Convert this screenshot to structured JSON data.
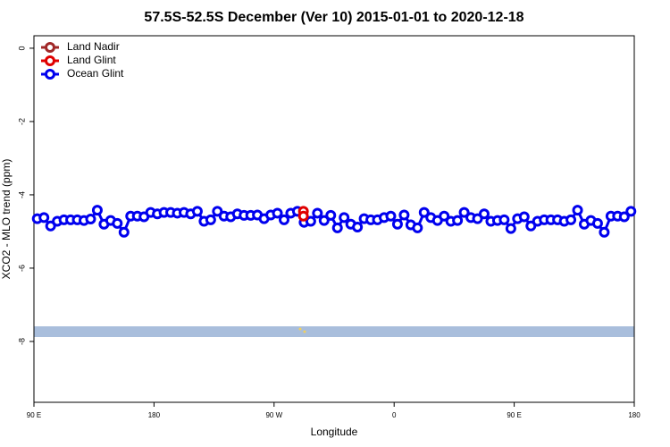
{
  "chart_data": {
    "type": "line",
    "title": "57.5S-52.5S December (Ver 10)   2015-01-01 to 2020-12-18",
    "x_label": "Longitude",
    "y_label": "XCO2 - MLO trend (ppm)",
    "xlim": [
      90,
      540
    ],
    "xticks": [
      {
        "value": 90,
        "label": "90 E"
      },
      {
        "value": 180,
        "label": "180"
      },
      {
        "value": 270,
        "label": "90 W"
      },
      {
        "value": 360,
        "label": "0"
      },
      {
        "value": 450,
        "label": "90 E"
      },
      {
        "value": 540,
        "label": "180"
      }
    ],
    "ylim": [
      -9.66,
      0.34
    ],
    "yticks": [
      0,
      -2,
      -4,
      -6,
      -8
    ],
    "legend": "upper left",
    "series": [
      {
        "name": "Land Nadir",
        "color": "#a02828",
        "x": [],
        "values": []
      },
      {
        "name": "Land Glint",
        "color": "#e00000",
        "x": [
          292,
          292
        ],
        "values": [
          -4.45,
          -4.58
        ]
      },
      {
        "name": "Ocean Glint",
        "color": "#0000ee",
        "x": [
          92.5,
          97.5,
          102.5,
          107.5,
          112.5,
          117.5,
          122.5,
          127.5,
          132.5,
          137.5,
          142.5,
          147.5,
          152.5,
          157.5,
          162.5,
          167.5,
          172.5,
          177.5,
          182.5,
          187.5,
          192.5,
          197.5,
          202.5,
          207.5,
          212.5,
          217.5,
          222.5,
          227.5,
          232.5,
          237.5,
          242.5,
          247.5,
          252.5,
          257.5,
          262.5,
          267.5,
          272.5,
          277.5,
          282.5,
          287.5,
          292.5,
          297.5,
          302.5,
          307.5,
          312.5,
          317.5,
          322.5,
          327.5,
          332.5,
          337.5,
          342.5,
          347.5,
          352.5,
          357.5,
          362.5,
          367.5,
          372.5,
          377.5,
          382.5,
          387.5,
          392.5,
          397.5,
          402.5,
          407.5,
          412.5,
          417.5,
          422.5,
          427.5,
          432.5,
          437.5,
          442.5,
          447.5,
          452.5,
          457.5,
          462.5,
          467.5,
          472.5,
          477.5,
          482.5,
          487.5,
          492.5,
          497.5,
          502.5,
          507.5,
          512.5,
          517.5,
          522.5,
          527.5,
          532.5,
          537.5
        ],
        "values": [
          -4.65,
          -4.62,
          -4.85,
          -4.72,
          -4.68,
          -4.68,
          -4.68,
          -4.7,
          -4.66,
          -4.42,
          -4.8,
          -4.7,
          -4.78,
          -5.02,
          -4.58,
          -4.58,
          -4.6,
          -4.48,
          -4.52,
          -4.48,
          -4.48,
          -4.5,
          -4.48,
          -4.52,
          -4.45,
          -4.72,
          -4.68,
          -4.45,
          -4.58,
          -4.6,
          -4.52,
          -4.56,
          -4.56,
          -4.55,
          -4.65,
          -4.55,
          -4.5,
          -4.68,
          -4.5,
          -4.45,
          -4.75,
          -4.72,
          -4.5,
          -4.7,
          -4.56,
          -4.9,
          -4.62,
          -4.8,
          -4.88,
          -4.65,
          -4.68,
          -4.68,
          -4.62,
          -4.58,
          -4.8,
          -4.55,
          -4.82,
          -4.9,
          -4.48,
          -4.62,
          -4.7,
          -4.58,
          -4.72,
          -4.7,
          -4.48,
          -4.62,
          -4.65,
          -4.52,
          -4.72,
          -4.7,
          -4.68,
          -4.92,
          -4.65,
          -4.6,
          -4.85,
          -4.72,
          -4.68,
          -4.68,
          -4.68,
          -4.72,
          -4.68,
          -4.42,
          -4.8,
          -4.7,
          -4.78,
          -5.02,
          -4.58,
          -4.58,
          -4.6,
          -4.45
        ]
      }
    ]
  }
}
